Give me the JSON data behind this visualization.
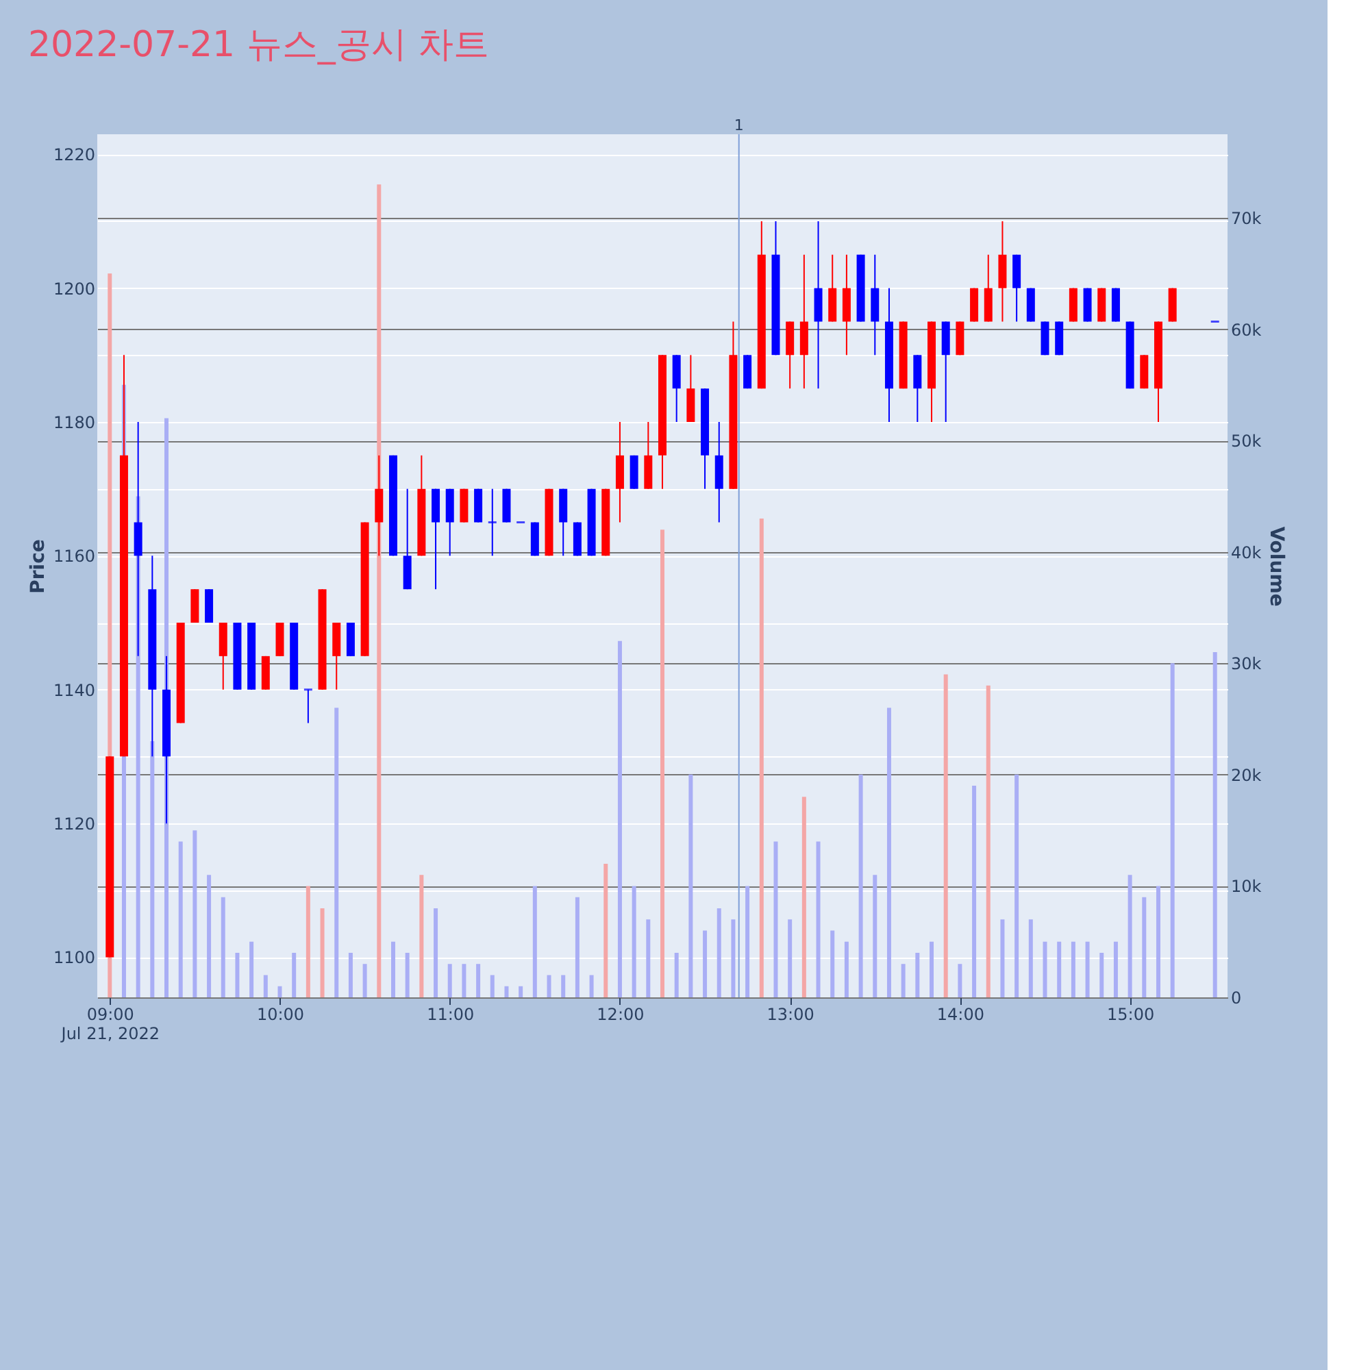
{
  "chart_data": {
    "type": "candlestick",
    "title": "2022-07-21 뉴스_공시 차트",
    "ylabel": "Price",
    "y2label": "Volume",
    "x": [
      "2022-07-21T09:00",
      "2022-07-21T09:05",
      "2022-07-21T09:10",
      "2022-07-21T09:15",
      "2022-07-21T09:20",
      "2022-07-21T09:25",
      "2022-07-21T09:30",
      "2022-07-21T09:35",
      "2022-07-21T09:40",
      "2022-07-21T09:45",
      "2022-07-21T09:50",
      "2022-07-21T09:55",
      "2022-07-21T10:00",
      "2022-07-21T10:05",
      "2022-07-21T10:10",
      "2022-07-21T10:15",
      "2022-07-21T10:20",
      "2022-07-21T10:25",
      "2022-07-21T10:30",
      "2022-07-21T10:35",
      "2022-07-21T10:40",
      "2022-07-21T10:45",
      "2022-07-21T10:50",
      "2022-07-21T10:55",
      "2022-07-21T11:00",
      "2022-07-21T11:05",
      "2022-07-21T11:10",
      "2022-07-21T11:15",
      "2022-07-21T11:20",
      "2022-07-21T11:25",
      "2022-07-21T11:30",
      "2022-07-21T11:35",
      "2022-07-21T11:40",
      "2022-07-21T11:45",
      "2022-07-21T11:50",
      "2022-07-21T11:55",
      "2022-07-21T12:00",
      "2022-07-21T12:05",
      "2022-07-21T12:10",
      "2022-07-21T12:15",
      "2022-07-21T12:20",
      "2022-07-21T12:25",
      "2022-07-21T12:30",
      "2022-07-21T12:35",
      "2022-07-21T12:40",
      "2022-07-21T12:45",
      "2022-07-21T12:50",
      "2022-07-21T12:55",
      "2022-07-21T13:00",
      "2022-07-21T13:05",
      "2022-07-21T13:10",
      "2022-07-21T13:15",
      "2022-07-21T13:20",
      "2022-07-21T13:25",
      "2022-07-21T13:30",
      "2022-07-21T13:35",
      "2022-07-21T13:40",
      "2022-07-21T13:45",
      "2022-07-21T13:50",
      "2022-07-21T13:55",
      "2022-07-21T14:00",
      "2022-07-21T14:05",
      "2022-07-21T14:10",
      "2022-07-21T14:15",
      "2022-07-21T14:20",
      "2022-07-21T14:25",
      "2022-07-21T14:30",
      "2022-07-21T14:35",
      "2022-07-21T14:40",
      "2022-07-21T14:45",
      "2022-07-21T14:50",
      "2022-07-21T14:55",
      "2022-07-21T15:00",
      "2022-07-21T15:05",
      "2022-07-21T15:10",
      "2022-07-21T15:15",
      "2022-07-21T15:30"
    ],
    "ohlc": [
      [
        1100,
        1130,
        1100,
        1130
      ],
      [
        1130,
        1190,
        1130,
        1175
      ],
      [
        1165,
        1180,
        1145,
        1160
      ],
      [
        1155,
        1160,
        1130,
        1140
      ],
      [
        1140,
        1145,
        1120,
        1130
      ],
      [
        1135,
        1150,
        1135,
        1150
      ],
      [
        1150,
        1155,
        1150,
        1155
      ],
      [
        1155,
        1155,
        1150,
        1150
      ],
      [
        1145,
        1150,
        1140,
        1150
      ],
      [
        1150,
        1150,
        1140,
        1140
      ],
      [
        1150,
        1150,
        1140,
        1140
      ],
      [
        1140,
        1145,
        1140,
        1145
      ],
      [
        1145,
        1150,
        1145,
        1150
      ],
      [
        1150,
        1150,
        1140,
        1140
      ],
      [
        1140,
        1140,
        1135,
        1140
      ],
      [
        1140,
        1155,
        1140,
        1155
      ],
      [
        1145,
        1150,
        1140,
        1150
      ],
      [
        1150,
        1150,
        1145,
        1145
      ],
      [
        1145,
        1165,
        1145,
        1165
      ],
      [
        1165,
        1175,
        1160,
        1170
      ],
      [
        1175,
        1175,
        1160,
        1160
      ],
      [
        1160,
        1170,
        1155,
        1155
      ],
      [
        1160,
        1175,
        1160,
        1170
      ],
      [
        1170,
        1170,
        1155,
        1165
      ],
      [
        1170,
        1170,
        1160,
        1165
      ],
      [
        1165,
        1170,
        1165,
        1170
      ],
      [
        1170,
        1170,
        1165,
        1165
      ],
      [
        1165,
        1170,
        1160,
        1165
      ],
      [
        1170,
        1170,
        1165,
        1165
      ],
      [
        1165,
        1165,
        1165,
        1165
      ],
      [
        1165,
        1165,
        1160,
        1160
      ],
      [
        1160,
        1170,
        1160,
        1170
      ],
      [
        1170,
        1170,
        1160,
        1165
      ],
      [
        1165,
        1165,
        1160,
        1160
      ],
      [
        1170,
        1170,
        1160,
        1160
      ],
      [
        1160,
        1170,
        1160,
        1170
      ],
      [
        1170,
        1180,
        1165,
        1175
      ],
      [
        1175,
        1175,
        1170,
        1170
      ],
      [
        1170,
        1180,
        1170,
        1175
      ],
      [
        1175,
        1190,
        1170,
        1190
      ],
      [
        1190,
        1190,
        1180,
        1185
      ],
      [
        1180,
        1190,
        1180,
        1185
      ],
      [
        1185,
        1185,
        1170,
        1175
      ],
      [
        1175,
        1180,
        1165,
        1170
      ],
      [
        1170,
        1195,
        1170,
        1190
      ],
      [
        1190,
        1190,
        1185,
        1185
      ],
      [
        1185,
        1210,
        1185,
        1205
      ],
      [
        1205,
        1210,
        1190,
        1190
      ],
      [
        1190,
        1195,
        1185,
        1195
      ],
      [
        1190,
        1205,
        1185,
        1195
      ],
      [
        1200,
        1210,
        1185,
        1195
      ],
      [
        1195,
        1205,
        1195,
        1200
      ],
      [
        1195,
        1205,
        1190,
        1200
      ],
      [
        1205,
        1205,
        1195,
        1195
      ],
      [
        1200,
        1205,
        1190,
        1195
      ],
      [
        1195,
        1200,
        1180,
        1185
      ],
      [
        1185,
        1195,
        1185,
        1195
      ],
      [
        1190,
        1190,
        1180,
        1185
      ],
      [
        1185,
        1195,
        1180,
        1195
      ],
      [
        1195,
        1195,
        1180,
        1190
      ],
      [
        1190,
        1195,
        1190,
        1195
      ],
      [
        1195,
        1200,
        1195,
        1200
      ],
      [
        1195,
        1205,
        1195,
        1200
      ],
      [
        1200,
        1210,
        1195,
        1205
      ],
      [
        1205,
        1205,
        1195,
        1200
      ],
      [
        1200,
        1200,
        1195,
        1195
      ],
      [
        1195,
        1195,
        1190,
        1190
      ],
      [
        1195,
        1195,
        1190,
        1190
      ],
      [
        1195,
        1200,
        1195,
        1200
      ],
      [
        1200,
        1200,
        1195,
        1195
      ],
      [
        1195,
        1200,
        1195,
        1200
      ],
      [
        1200,
        1200,
        1195,
        1195
      ],
      [
        1195,
        1195,
        1185,
        1185
      ],
      [
        1185,
        1190,
        1185,
        1190
      ],
      [
        1185,
        1195,
        1180,
        1195
      ],
      [
        1195,
        1200,
        1195,
        1200
      ],
      [
        1195,
        1195,
        1195,
        1195
      ]
    ],
    "colors": [
      "#ff0000",
      "#ff0000",
      "#0000ff",
      "#0000ff",
      "#0000ff",
      "#ff0000",
      "#ff0000",
      "#0000ff",
      "#ff0000",
      "#0000ff",
      "#0000ff",
      "#ff0000",
      "#ff0000",
      "#0000ff",
      "#0000ff",
      "#ff0000",
      "#ff0000",
      "#0000ff",
      "#ff0000",
      "#ff0000",
      "#0000ff",
      "#0000ff",
      "#ff0000",
      "#0000ff",
      "#0000ff",
      "#ff0000",
      "#0000ff",
      "#0000ff",
      "#0000ff",
      "#0000ff",
      "#0000ff",
      "#ff0000",
      "#0000ff",
      "#0000ff",
      "#0000ff",
      "#ff0000",
      "#ff0000",
      "#0000ff",
      "#ff0000",
      "#ff0000",
      "#0000ff",
      "#ff0000",
      "#0000ff",
      "#0000ff",
      "#ff0000",
      "#0000ff",
      "#ff0000",
      "#0000ff",
      "#ff0000",
      "#ff0000",
      "#0000ff",
      "#ff0000",
      "#ff0000",
      "#0000ff",
      "#0000ff",
      "#0000ff",
      "#ff0000",
      "#0000ff",
      "#ff0000",
      "#0000ff",
      "#ff0000",
      "#ff0000",
      "#ff0000",
      "#ff0000",
      "#0000ff",
      "#0000ff",
      "#0000ff",
      "#0000ff",
      "#ff0000",
      "#0000ff",
      "#ff0000",
      "#0000ff",
      "#0000ff",
      "#ff0000",
      "#ff0000",
      "#ff0000",
      "#0000ff"
    ],
    "series": [
      {
        "type": "bar",
        "axis": "y2",
        "values": [
          65000,
          55000,
          45000,
          23000,
          52000,
          14000,
          15000,
          11000,
          9000,
          4000,
          5000,
          2000,
          1000,
          4000,
          10000,
          8000,
          26000,
          4000,
          3000,
          73000,
          5000,
          4000,
          11000,
          8000,
          3000,
          3000,
          3000,
          2000,
          1000,
          1000,
          10000,
          2000,
          2000,
          9000,
          2000,
          12000,
          32000,
          10000,
          7000,
          42000,
          4000,
          20000,
          6000,
          8000,
          7000,
          10000,
          43000,
          14000,
          7000,
          18000,
          14000,
          6000,
          5000,
          20000,
          11000,
          26000,
          3000,
          4000,
          5000,
          29000,
          3000,
          19000,
          28000,
          7000,
          20000,
          7000,
          5000,
          5000,
          5000,
          5000,
          4000,
          5000,
          11000,
          9000,
          10000,
          30000,
          31000
        ],
        "colors": [
          "#f4a6a6",
          "#a9aef5",
          "#a9aef5",
          "#a9aef5",
          "#a9aef5",
          "#a9aef5",
          "#a9aef5",
          "#a9aef5",
          "#a9aef5",
          "#a9aef5",
          "#a9aef5",
          "#a9aef5",
          "#a9aef5",
          "#a9aef5",
          "#f4a6a6",
          "#f4a6a6",
          "#a9aef5",
          "#a9aef5",
          "#a9aef5",
          "#f4a6a6",
          "#a9aef5",
          "#a9aef5",
          "#f4a6a6",
          "#a9aef5",
          "#a9aef5",
          "#a9aef5",
          "#a9aef5",
          "#a9aef5",
          "#a9aef5",
          "#a9aef5",
          "#a9aef5",
          "#a9aef5",
          "#a9aef5",
          "#a9aef5",
          "#a9aef5",
          "#f4a6a6",
          "#a9aef5",
          "#a9aef5",
          "#a9aef5",
          "#f4a6a6",
          "#a9aef5",
          "#a9aef5",
          "#a9aef5",
          "#a9aef5",
          "#a9aef5",
          "#a9aef5",
          "#f4a6a6",
          "#a9aef5",
          "#a9aef5",
          "#f4a6a6",
          "#a9aef5",
          "#a9aef5",
          "#a9aef5",
          "#a9aef5",
          "#a9aef5",
          "#a9aef5",
          "#a9aef5",
          "#a9aef5",
          "#a9aef5",
          "#f4a6a6",
          "#a9aef5",
          "#a9aef5",
          "#f4a6a6",
          "#a9aef5",
          "#a9aef5",
          "#a9aef5",
          "#a9aef5",
          "#a9aef5",
          "#a9aef5",
          "#a9aef5",
          "#a9aef5",
          "#a9aef5",
          "#a9aef5",
          "#a9aef5",
          "#a9aef5",
          "#a9aef5",
          "#a9aef5"
        ]
      }
    ],
    "xlim": [
      "2022-07-21T08:58",
      "2022-07-21T15:32"
    ],
    "xticks": [
      {
        "value": "2022-07-21T09:00",
        "label": "09:00\nJul 21, 2022"
      },
      {
        "value": "2022-07-21T10:00",
        "label": "10:00"
      },
      {
        "value": "2022-07-21T11:00",
        "label": "11:00"
      },
      {
        "value": "2022-07-21T12:00",
        "label": "12:00"
      },
      {
        "value": "2022-07-21T13:00",
        "label": "13:00"
      },
      {
        "value": "2022-07-21T14:00",
        "label": "14:00"
      },
      {
        "value": "2022-07-21T15:00",
        "label": "15:00"
      }
    ],
    "ylim": [
      1094,
      1223
    ],
    "yticks": [
      1100,
      {
        "value": 1110,
        "label": null
      },
      1120,
      {
        "value": 1130,
        "label": null
      },
      1140,
      {
        "value": 1150,
        "label": null
      },
      1160,
      {
        "value": 1170,
        "label": null
      },
      1180,
      {
        "value": 1190,
        "label": null
      },
      1200,
      {
        "value": 1210,
        "label": null
      },
      1220
    ],
    "y2lim": [
      0,
      77500
    ],
    "y2ticks": [
      0,
      {
        "value": 10000,
        "label": "10k"
      },
      {
        "value": 20000,
        "label": "20k"
      },
      {
        "value": 30000,
        "label": "30k"
      },
      {
        "value": 40000,
        "label": "40k"
      },
      {
        "value": 50000,
        "label": "50k"
      },
      {
        "value": 60000,
        "label": "60k"
      },
      {
        "value": 70000,
        "label": "70k"
      }
    ],
    "ref_lines": [
      {
        "axis": "x",
        "value": "2022-07-21T12:42",
        "label": "1",
        "color": "#7f9fd8"
      }
    ],
    "grid": "y"
  }
}
